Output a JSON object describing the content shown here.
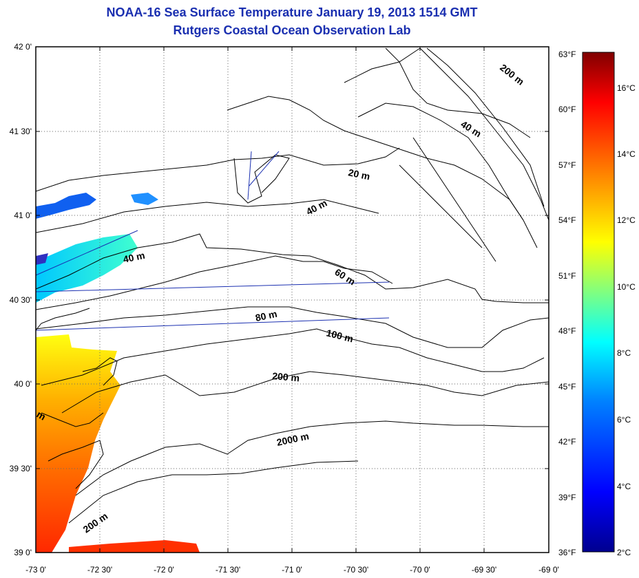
{
  "header": {
    "title": "NOAA-16 Sea Surface Temperature January 19, 2013 1514 GMT",
    "subtitle": "Rutgers Coastal Ocean Observation Lab"
  },
  "map": {
    "lon_labels": [
      "-73 0'",
      "-72 30'",
      "-72 0'",
      "-71 30'",
      "-71 0'",
      "-70 30'",
      "-70 0'",
      "-69 30'",
      "-69 0'"
    ],
    "lat_labels": [
      "42 0'",
      "41 30'",
      "41 0'",
      "40 30'",
      "40 0'",
      "39 30'",
      "39 0'"
    ],
    "right_labels": [
      "63°F",
      "60°F",
      "57°F",
      "54°F",
      "51°F",
      "48°F",
      "45°F",
      "42°F",
      "39°F",
      "36°F"
    ],
    "contour_labels": [
      "200 m",
      "40 m",
      "20 m",
      "40 m",
      "40 m",
      "60 m",
      "80 m",
      "100 m",
      "200 m",
      "2000 m",
      "200 m",
      "m"
    ],
    "colors": {
      "land_line": "#000000",
      "grid": "#555555",
      "track": "#1a2fb0"
    }
  },
  "colorbar": {
    "celsius_labels": [
      "16°C",
      "14°C",
      "12°C",
      "10°C",
      "8°C",
      "6°C",
      "4°C",
      "2°C"
    ],
    "colors": [
      "#00008f",
      "#0000ff",
      "#0080ff",
      "#00ffff",
      "#80ff80",
      "#ffff00",
      "#ff8000",
      "#ff0000",
      "#800000"
    ]
  }
}
